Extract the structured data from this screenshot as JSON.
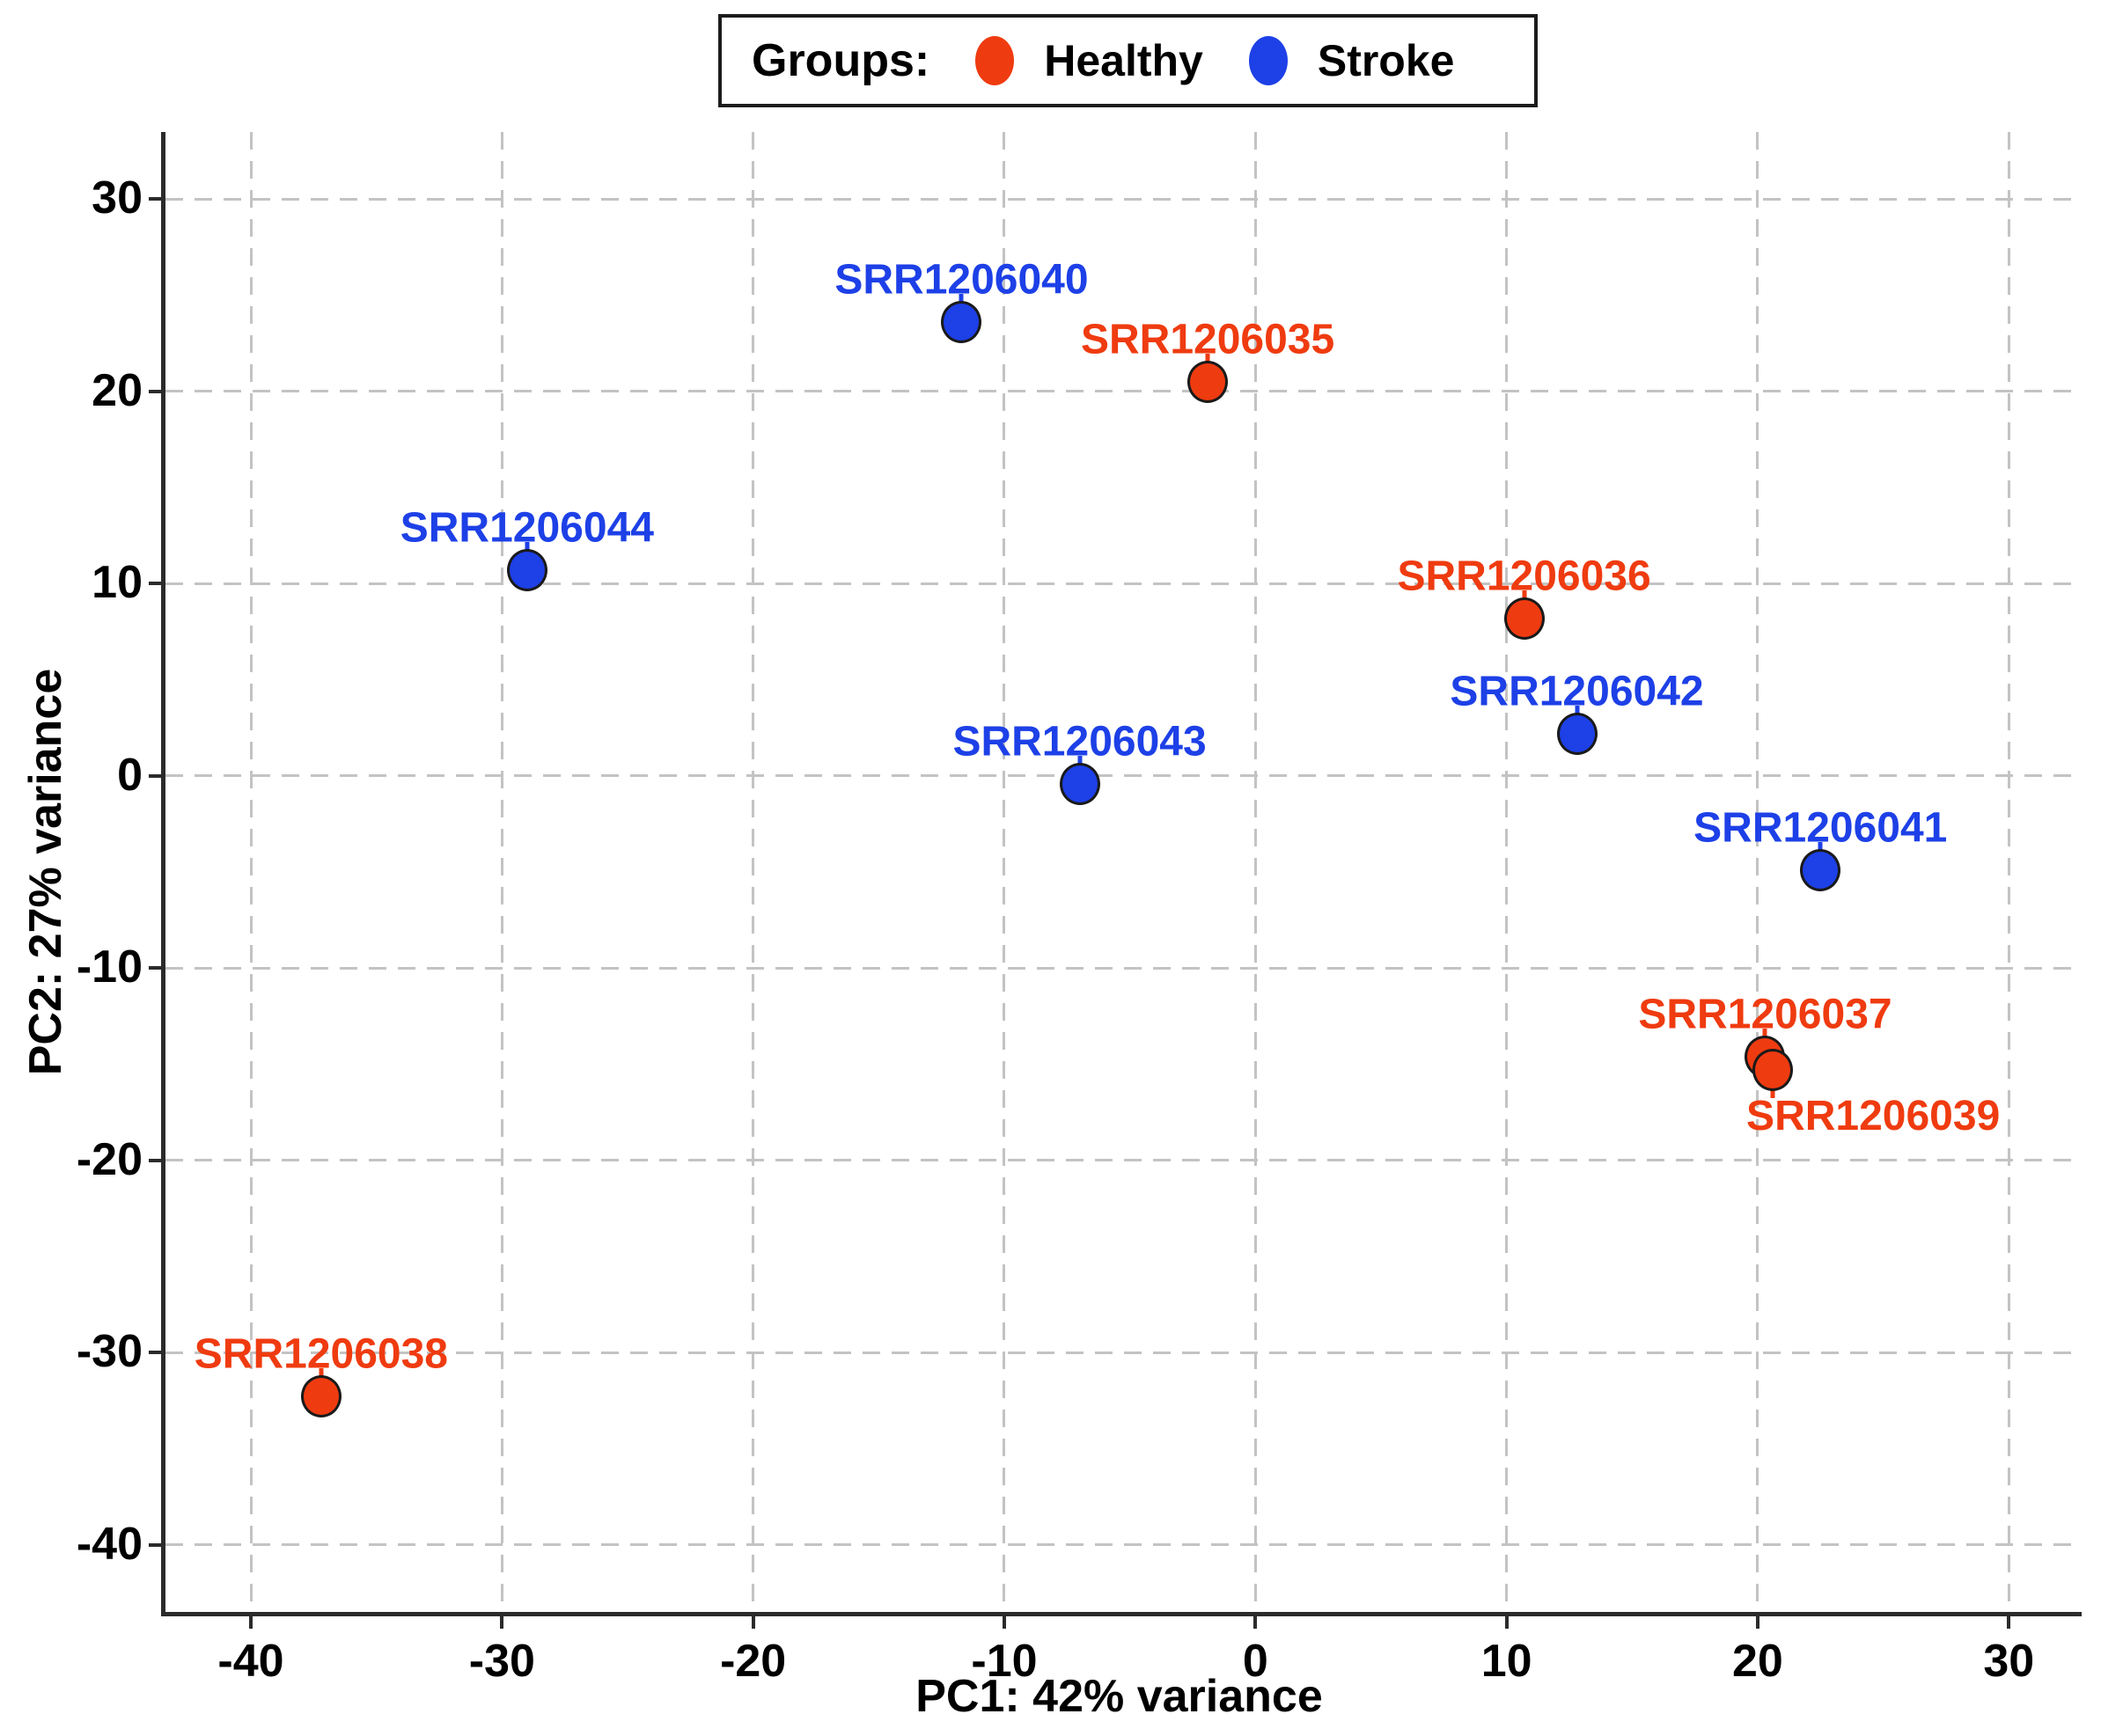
{
  "legend": {
    "title": "Groups:",
    "items": [
      {
        "label": "Healthy",
        "color": "#EF3B10"
      },
      {
        "label": "Stroke",
        "color": "#1D40E7"
      }
    ]
  },
  "chart_data": {
    "type": "scatter",
    "title": "",
    "xlabel": "PC1: 42% variance",
    "ylabel": "PC2: 27% variance",
    "xlim": [
      -43.4,
      32.9
    ],
    "ylim": [
      -43.5,
      33.5
    ],
    "xticks": [
      -40,
      -30,
      -20,
      -10,
      0,
      10,
      20,
      30
    ],
    "yticks": [
      30,
      20,
      10,
      0,
      -10,
      -20,
      -30,
      -40
    ],
    "grid": true,
    "legend_position": "top-center",
    "colors": {
      "grid": "#c3c3c3",
      "axis": "#2b2b2b",
      "point_outline": "#1a1a1a"
    },
    "series": [
      {
        "name": "Healthy",
        "color": "#EF3B10",
        "points": [
          {
            "id": "SRR1206035",
            "x": -1.9,
            "y": 20.5,
            "label_pos": "above"
          },
          {
            "id": "SRR1206036",
            "x": 10.7,
            "y": 8.2,
            "label_pos": "above"
          },
          {
            "id": "SRR1206037",
            "x": 20.3,
            "y": -14.6,
            "label_pos": "above"
          },
          {
            "id": "SRR1206039",
            "x": 20.6,
            "y": -15.3,
            "label_pos": "below-right"
          },
          {
            "id": "SRR1206038",
            "x": -37.2,
            "y": -32.3,
            "label_pos": "above"
          }
        ]
      },
      {
        "name": "Stroke",
        "color": "#1D40E7",
        "points": [
          {
            "id": "SRR1206040",
            "x": -11.7,
            "y": 23.6,
            "label_pos": "above"
          },
          {
            "id": "SRR1206044",
            "x": -29.0,
            "y": 10.7,
            "label_pos": "above"
          },
          {
            "id": "SRR1206043",
            "x": -7.0,
            "y": -0.4,
            "label_pos": "above"
          },
          {
            "id": "SRR1206042",
            "x": 12.8,
            "y": 2.2,
            "label_pos": "above"
          },
          {
            "id": "SRR1206041",
            "x": 22.5,
            "y": -4.9,
            "label_pos": "above"
          }
        ]
      }
    ]
  }
}
